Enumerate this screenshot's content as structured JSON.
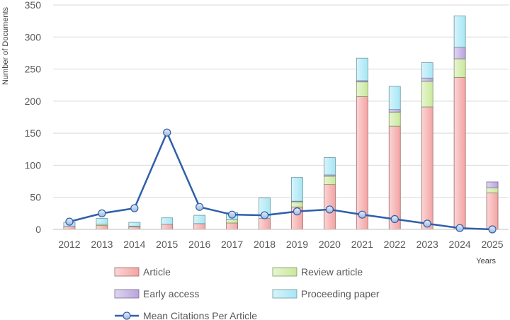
{
  "chart_data": {
    "type": "bar",
    "stacked": true,
    "categories": [
      "2012",
      "2013",
      "2014",
      "2015",
      "2016",
      "2017",
      "2018",
      "2019",
      "2020",
      "2021",
      "2022",
      "2023",
      "2024",
      "2025"
    ],
    "series": [
      {
        "name": "Article",
        "color": "#f4a3a3",
        "values": [
          5,
          6,
          4,
          8,
          9,
          10,
          17,
          35,
          70,
          207,
          161,
          191,
          237,
          57
        ]
      },
      {
        "name": "Review article",
        "color": "#c9e89b",
        "values": [
          0,
          2,
          1,
          0,
          0,
          5,
          0,
          8,
          13,
          23,
          22,
          40,
          29,
          8
        ]
      },
      {
        "name": "Early access",
        "color": "#b9a3de",
        "values": [
          0,
          0,
          0,
          0,
          0,
          0,
          0,
          1,
          2,
          2,
          4,
          5,
          18,
          9
        ]
      },
      {
        "name": "Proceeding paper",
        "color": "#a6e6f5",
        "values": [
          6,
          9,
          6,
          10,
          13,
          11,
          32,
          37,
          27,
          35,
          36,
          24,
          49,
          0
        ]
      }
    ],
    "line": {
      "name": "Mean Citations Per Article",
      "color": "#2f5faa",
      "values": [
        12,
        25,
        33,
        151,
        35,
        23,
        22,
        28,
        31,
        23,
        16,
        9,
        2,
        0
      ]
    },
    "ylabel": "Number of Documents",
    "xlabel": "Years",
    "ylim": [
      0,
      350
    ],
    "yticks": [
      0,
      50,
      100,
      150,
      200,
      250,
      300,
      350
    ],
    "grid": true,
    "legend_position": "bottom"
  }
}
